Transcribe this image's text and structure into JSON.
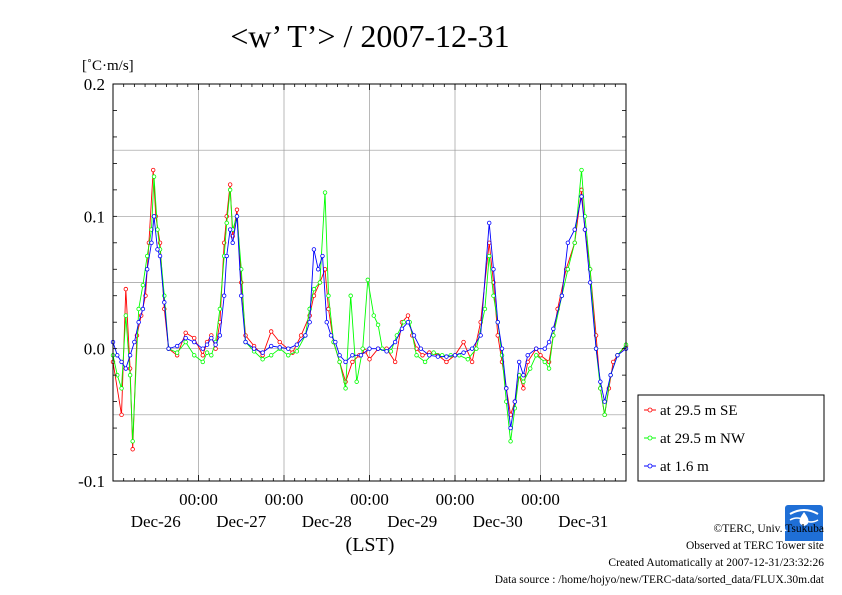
{
  "chart_data": {
    "type": "line",
    "title": "<w’ T’> / 2007-12-31",
    "ylabel": "[˚C·m/s]",
    "xlabel": "(LST)",
    "ylim": [
      -0.1,
      0.2
    ],
    "yticks": [
      "0.2",
      "0.1",
      "0.0",
      "-0.1"
    ],
    "xlim": [
      0,
      6
    ],
    "x_tick_times": [
      "00:00",
      "00:00",
      "00:00",
      "00:00",
      "00:00"
    ],
    "x_day_labels": [
      "Dec-26",
      "Dec-27",
      "Dec-28",
      "Dec-29",
      "Dec-30",
      "Dec-31"
    ],
    "x_unit": "days since Dec-26 00:00",
    "grid": true,
    "legend_position": "bottom-right outside",
    "series": [
      {
        "name": "at 29.5 m SE",
        "color": "#ff0000",
        "points": [
          [
            0.0,
            -0.01
          ],
          [
            0.1,
            -0.05
          ],
          [
            0.15,
            0.045
          ],
          [
            0.2,
            -0.015
          ],
          [
            0.23,
            -0.076
          ],
          [
            0.28,
            0.01
          ],
          [
            0.33,
            0.025
          ],
          [
            0.38,
            0.04
          ],
          [
            0.42,
            0.08
          ],
          [
            0.47,
            0.135
          ],
          [
            0.5,
            0.1
          ],
          [
            0.55,
            0.08
          ],
          [
            0.6,
            0.03
          ],
          [
            0.65,
            0.0
          ],
          [
            0.75,
            -0.005
          ],
          [
            0.85,
            0.012
          ],
          [
            0.95,
            0.008
          ],
          [
            1.05,
            -0.005
          ],
          [
            1.1,
            0.005
          ],
          [
            1.15,
            0.01
          ],
          [
            1.2,
            0.0
          ],
          [
            1.25,
            0.02
          ],
          [
            1.3,
            0.08
          ],
          [
            1.33,
            0.1
          ],
          [
            1.37,
            0.124
          ],
          [
            1.4,
            0.085
          ],
          [
            1.45,
            0.105
          ],
          [
            1.5,
            0.05
          ],
          [
            1.55,
            0.01
          ],
          [
            1.65,
            0.002
          ],
          [
            1.75,
            -0.005
          ],
          [
            1.85,
            0.013
          ],
          [
            1.95,
            0.005
          ],
          [
            2.1,
            -0.003
          ],
          [
            2.2,
            0.01
          ],
          [
            2.3,
            0.025
          ],
          [
            2.35,
            0.04
          ],
          [
            2.42,
            0.05
          ],
          [
            2.48,
            0.06
          ],
          [
            2.52,
            0.03
          ],
          [
            2.58,
            0.005
          ],
          [
            2.65,
            -0.01
          ],
          [
            2.72,
            -0.025
          ],
          [
            2.8,
            -0.01
          ],
          [
            2.88,
            -0.005
          ],
          [
            2.95,
            -0.002
          ],
          [
            3.0,
            -0.008
          ],
          [
            3.1,
            0.0
          ],
          [
            3.2,
            0.0
          ],
          [
            3.3,
            -0.01
          ],
          [
            3.38,
            0.02
          ],
          [
            3.45,
            0.025
          ],
          [
            3.5,
            0.01
          ],
          [
            3.55,
            0.0
          ],
          [
            3.62,
            -0.005
          ],
          [
            3.7,
            -0.003
          ],
          [
            3.8,
            -0.005
          ],
          [
            3.9,
            -0.01
          ],
          [
            4.0,
            -0.005
          ],
          [
            4.1,
            0.005
          ],
          [
            4.2,
            -0.01
          ],
          [
            4.3,
            0.02
          ],
          [
            4.4,
            0.08
          ],
          [
            4.45,
            0.05
          ],
          [
            4.5,
            0.01
          ],
          [
            4.55,
            -0.01
          ],
          [
            4.6,
            -0.03
          ],
          [
            4.65,
            -0.05
          ],
          [
            4.7,
            -0.04
          ],
          [
            4.75,
            -0.02
          ],
          [
            4.8,
            -0.03
          ],
          [
            4.85,
            -0.01
          ],
          [
            4.95,
            0.0
          ],
          [
            5.0,
            -0.005
          ],
          [
            5.1,
            -0.01
          ],
          [
            5.15,
            0.01
          ],
          [
            5.2,
            0.03
          ],
          [
            5.3,
            0.06
          ],
          [
            5.4,
            0.08
          ],
          [
            5.48,
            0.12
          ],
          [
            5.52,
            0.09
          ],
          [
            5.58,
            0.06
          ],
          [
            5.65,
            0.01
          ],
          [
            5.7,
            -0.03
          ],
          [
            5.75,
            -0.05
          ],
          [
            5.8,
            -0.03
          ],
          [
            5.85,
            -0.01
          ],
          [
            5.9,
            -0.005
          ],
          [
            6.0,
            0.002
          ]
        ]
      },
      {
        "name": "at 29.5 m NW",
        "color": "#00ff00",
        "points": [
          [
            0.0,
            -0.005
          ],
          [
            0.05,
            -0.02
          ],
          [
            0.1,
            -0.03
          ],
          [
            0.15,
            0.025
          ],
          [
            0.2,
            -0.02
          ],
          [
            0.23,
            -0.07
          ],
          [
            0.3,
            0.03
          ],
          [
            0.35,
            0.048
          ],
          [
            0.4,
            0.07
          ],
          [
            0.45,
            0.09
          ],
          [
            0.48,
            0.13
          ],
          [
            0.52,
            0.09
          ],
          [
            0.55,
            0.075
          ],
          [
            0.6,
            0.04
          ],
          [
            0.65,
            0.0
          ],
          [
            0.75,
            -0.003
          ],
          [
            0.85,
            0.005
          ],
          [
            0.95,
            -0.005
          ],
          [
            1.05,
            -0.01
          ],
          [
            1.1,
            -0.003
          ],
          [
            1.15,
            -0.005
          ],
          [
            1.2,
            0.005
          ],
          [
            1.25,
            0.03
          ],
          [
            1.3,
            0.07
          ],
          [
            1.33,
            0.095
          ],
          [
            1.37,
            0.12
          ],
          [
            1.4,
            0.09
          ],
          [
            1.45,
            0.1
          ],
          [
            1.5,
            0.06
          ],
          [
            1.55,
            0.005
          ],
          [
            1.65,
            -0.002
          ],
          [
            1.75,
            -0.008
          ],
          [
            1.85,
            -0.005
          ],
          [
            1.95,
            0.0
          ],
          [
            2.05,
            -0.005
          ],
          [
            2.15,
            -0.002
          ],
          [
            2.25,
            0.01
          ],
          [
            2.3,
            0.03
          ],
          [
            2.35,
            0.045
          ],
          [
            2.42,
            0.05
          ],
          [
            2.48,
            0.118
          ],
          [
            2.52,
            0.04
          ],
          [
            2.58,
            0.005
          ],
          [
            2.65,
            -0.01
          ],
          [
            2.72,
            -0.03
          ],
          [
            2.78,
            0.04
          ],
          [
            2.85,
            -0.025
          ],
          [
            2.92,
            0.0
          ],
          [
            2.98,
            0.052
          ],
          [
            3.05,
            0.025
          ],
          [
            3.1,
            0.018
          ],
          [
            3.15,
            0.0
          ],
          [
            3.25,
            -0.002
          ],
          [
            3.32,
            0.01
          ],
          [
            3.4,
            0.02
          ],
          [
            3.47,
            0.02
          ],
          [
            3.55,
            -0.005
          ],
          [
            3.65,
            -0.01
          ],
          [
            3.75,
            -0.003
          ],
          [
            3.85,
            -0.005
          ],
          [
            3.95,
            -0.005
          ],
          [
            4.05,
            -0.005
          ],
          [
            4.15,
            -0.008
          ],
          [
            4.25,
            0.0
          ],
          [
            4.35,
            0.03
          ],
          [
            4.4,
            0.07
          ],
          [
            4.45,
            0.04
          ],
          [
            4.5,
            0.02
          ],
          [
            4.55,
            -0.005
          ],
          [
            4.6,
            -0.04
          ],
          [
            4.65,
            -0.07
          ],
          [
            4.7,
            -0.045
          ],
          [
            4.75,
            -0.02
          ],
          [
            4.8,
            -0.025
          ],
          [
            4.88,
            -0.015
          ],
          [
            4.95,
            -0.005
          ],
          [
            5.05,
            -0.01
          ],
          [
            5.1,
            -0.015
          ],
          [
            5.15,
            0.01
          ],
          [
            5.25,
            0.04
          ],
          [
            5.32,
            0.06
          ],
          [
            5.4,
            0.08
          ],
          [
            5.48,
            0.135
          ],
          [
            5.52,
            0.1
          ],
          [
            5.58,
            0.06
          ],
          [
            5.65,
            0.0
          ],
          [
            5.7,
            -0.03
          ],
          [
            5.75,
            -0.05
          ],
          [
            5.82,
            -0.02
          ],
          [
            5.9,
            -0.005
          ],
          [
            6.0,
            0.003
          ]
        ]
      },
      {
        "name": "at 1.6 m",
        "color": "#0000ff",
        "points": [
          [
            0.0,
            0.005
          ],
          [
            0.05,
            -0.005
          ],
          [
            0.1,
            -0.01
          ],
          [
            0.15,
            -0.015
          ],
          [
            0.2,
            -0.005
          ],
          [
            0.25,
            0.005
          ],
          [
            0.3,
            0.02
          ],
          [
            0.35,
            0.03
          ],
          [
            0.4,
            0.06
          ],
          [
            0.45,
            0.08
          ],
          [
            0.48,
            0.1
          ],
          [
            0.52,
            0.075
          ],
          [
            0.55,
            0.07
          ],
          [
            0.6,
            0.035
          ],
          [
            0.65,
            0.0
          ],
          [
            0.75,
            0.002
          ],
          [
            0.85,
            0.008
          ],
          [
            0.95,
            0.005
          ],
          [
            1.05,
            0.0
          ],
          [
            1.1,
            0.003
          ],
          [
            1.15,
            0.008
          ],
          [
            1.2,
            0.003
          ],
          [
            1.25,
            0.01
          ],
          [
            1.3,
            0.04
          ],
          [
            1.33,
            0.07
          ],
          [
            1.37,
            0.09
          ],
          [
            1.4,
            0.08
          ],
          [
            1.45,
            0.1
          ],
          [
            1.5,
            0.04
          ],
          [
            1.55,
            0.005
          ],
          [
            1.65,
            0.0
          ],
          [
            1.75,
            -0.003
          ],
          [
            1.85,
            0.002
          ],
          [
            1.95,
            0.001
          ],
          [
            2.05,
            0.0
          ],
          [
            2.15,
            0.003
          ],
          [
            2.25,
            0.01
          ],
          [
            2.3,
            0.02
          ],
          [
            2.35,
            0.075
          ],
          [
            2.4,
            0.06
          ],
          [
            2.45,
            0.07
          ],
          [
            2.5,
            0.02
          ],
          [
            2.55,
            0.01
          ],
          [
            2.6,
            0.005
          ],
          [
            2.65,
            -0.005
          ],
          [
            2.72,
            -0.01
          ],
          [
            2.8,
            -0.005
          ],
          [
            2.9,
            -0.005
          ],
          [
            3.0,
            0.0
          ],
          [
            3.1,
            0.0
          ],
          [
            3.2,
            -0.002
          ],
          [
            3.3,
            0.005
          ],
          [
            3.38,
            0.015
          ],
          [
            3.45,
            0.02
          ],
          [
            3.52,
            0.01
          ],
          [
            3.6,
            0.0
          ],
          [
            3.7,
            -0.005
          ],
          [
            3.8,
            -0.006
          ],
          [
            3.9,
            -0.006
          ],
          [
            4.0,
            -0.005
          ],
          [
            4.1,
            -0.003
          ],
          [
            4.2,
            0.0
          ],
          [
            4.3,
            0.01
          ],
          [
            4.4,
            0.095
          ],
          [
            4.45,
            0.06
          ],
          [
            4.5,
            0.02
          ],
          [
            4.55,
            0.0
          ],
          [
            4.6,
            -0.03
          ],
          [
            4.65,
            -0.06
          ],
          [
            4.7,
            -0.04
          ],
          [
            4.75,
            -0.01
          ],
          [
            4.8,
            -0.02
          ],
          [
            4.85,
            -0.005
          ],
          [
            4.95,
            0.0
          ],
          [
            5.05,
            0.0
          ],
          [
            5.1,
            0.005
          ],
          [
            5.15,
            0.015
          ],
          [
            5.25,
            0.04
          ],
          [
            5.32,
            0.08
          ],
          [
            5.4,
            0.09
          ],
          [
            5.48,
            0.115
          ],
          [
            5.52,
            0.09
          ],
          [
            5.58,
            0.05
          ],
          [
            5.65,
            0.0
          ],
          [
            5.7,
            -0.025
          ],
          [
            5.75,
            -0.04
          ],
          [
            5.82,
            -0.02
          ],
          [
            5.9,
            -0.005
          ],
          [
            6.0,
            0.0
          ]
        ]
      }
    ]
  },
  "footer": {
    "copyright": "©TERC, Univ. Tsukuba",
    "observed": "Observed at TERC Tower site",
    "created": "Created Automatically at 2007-12-31/23:32:26",
    "source": "Data source : /home/hojyo/new/TERC-data/sorted_data/FLUX.30m.dat"
  },
  "logo": {
    "text": "TERC",
    "color": "#1f6fd6"
  }
}
